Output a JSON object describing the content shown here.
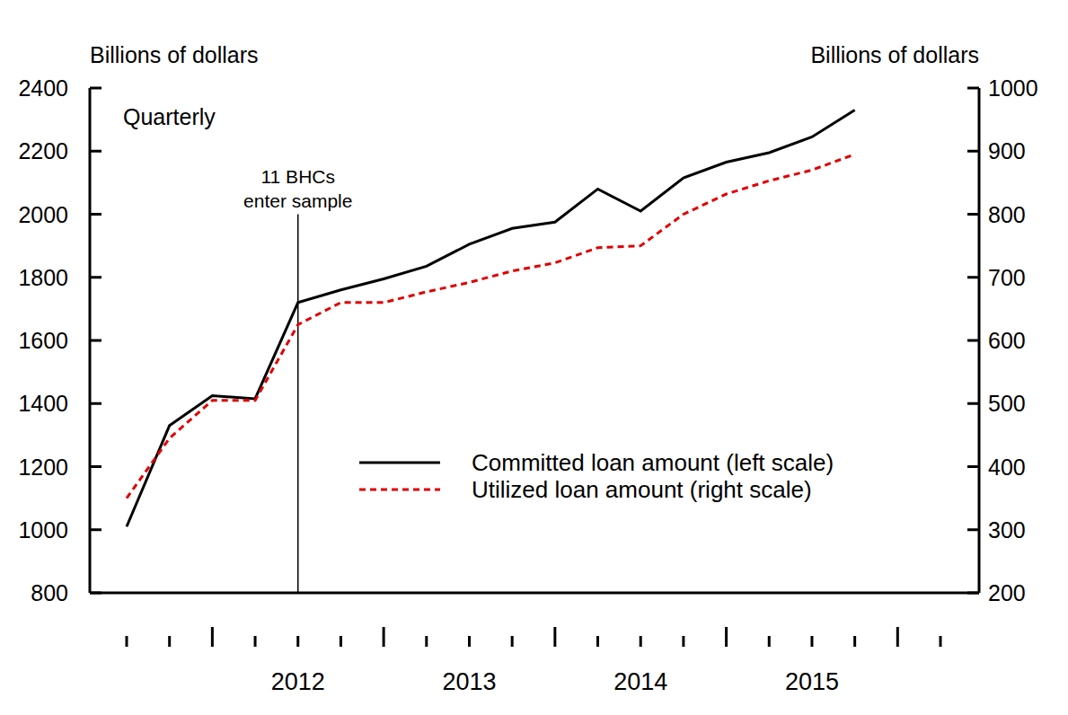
{
  "chart_data": {
    "type": "line",
    "frequency_label": "Quarterly",
    "y_label": "Billions of dollars",
    "y2_label": "Billions of dollars",
    "categories": [
      null,
      null,
      null,
      null,
      "2012",
      null,
      null,
      null,
      "2013",
      null,
      null,
      null,
      "2014",
      null,
      null,
      null,
      "2015",
      null,
      null,
      null
    ],
    "series": [
      {
        "name": "Committed loan amount (left scale)",
        "color": "#000000",
        "line_style": "solid",
        "axis": "y",
        "values": [
          1010,
          1330,
          1425,
          1415,
          1720,
          1760,
          1795,
          1835,
          1905,
          1955,
          1975,
          2080,
          2010,
          2115,
          2165,
          2195,
          2245,
          2330,
          null,
          null
        ]
      },
      {
        "name": "Utilized loan amount (right scale)",
        "color": "#e00000",
        "line_style": "dashed",
        "axis": "y2",
        "values": [
          350,
          445,
          505,
          505,
          625,
          660,
          660,
          677,
          692,
          710,
          723,
          747,
          750,
          800,
          832,
          853,
          870,
          895,
          null,
          null
        ]
      }
    ],
    "ylim": [
      800,
      2400
    ],
    "yticks": [
      800,
      1000,
      1200,
      1400,
      1600,
      1800,
      2000,
      2200,
      2400
    ],
    "y2lim": [
      200,
      1000
    ],
    "y2ticks": [
      200,
      300,
      400,
      500,
      600,
      700,
      800,
      900,
      1000
    ],
    "annotations": [
      {
        "lines": [
          "11 BHCs",
          "enter sample"
        ],
        "category_index": 4
      }
    ],
    "legend": "lower right",
    "grid": false
  }
}
